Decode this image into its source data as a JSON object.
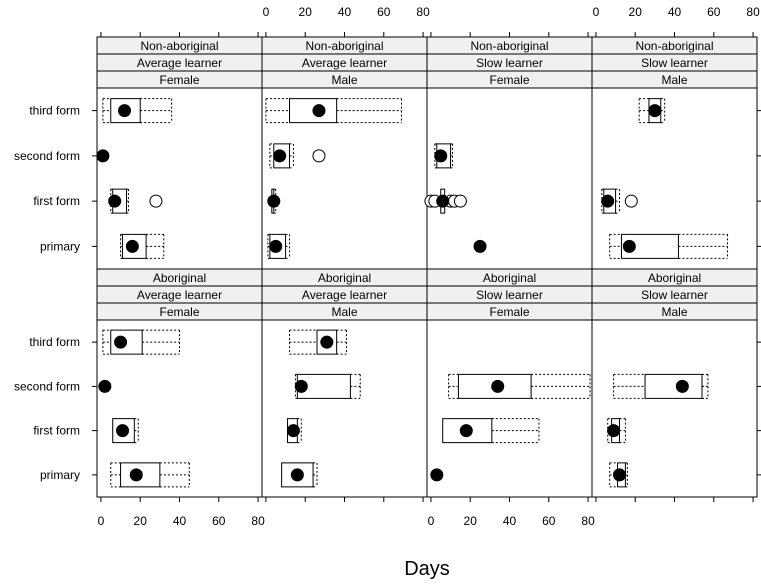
{
  "chart_data": {
    "type": "boxplot",
    "xlabel": "Days",
    "xlim": [
      -2,
      82
    ],
    "x_ticks": [
      0,
      20,
      40,
      60,
      80
    ],
    "categories": [
      "primary",
      "first form",
      "second form",
      "third form"
    ],
    "colors": {
      "box": "#000000",
      "dot": "#000000",
      "strip": "#f0f0f0",
      "outlier_fill": "#ffffff"
    },
    "panels": [
      {
        "strip": [
          "Non-aboriginal",
          "Average learner",
          "Female"
        ],
        "boxes": [
          {
            "category": "third form",
            "lo": 1,
            "q1": 5,
            "median": 12,
            "q3": 20,
            "hi": 36,
            "outliers": []
          },
          {
            "category": "second form",
            "lo": 1,
            "q1": 1,
            "median": 1,
            "q3": 1,
            "hi": 1,
            "outliers": []
          },
          {
            "category": "first form",
            "lo": 5,
            "q1": 6,
            "median": 7,
            "q3": 13,
            "hi": 14,
            "outliers": [
              28
            ]
          },
          {
            "category": "primary",
            "lo": 10,
            "q1": 11,
            "median": 16,
            "q3": 23,
            "hi": 32,
            "outliers": []
          }
        ]
      },
      {
        "strip": [
          "Non-aboriginal",
          "Average learner",
          "Male"
        ],
        "boxes": [
          {
            "category": "third form",
            "lo": 0,
            "q1": 12,
            "median": 27,
            "q3": 36,
            "hi": 69,
            "outliers": []
          },
          {
            "category": "second form",
            "lo": 2,
            "q1": 4,
            "median": 7,
            "q3": 12,
            "hi": 14,
            "outliers": [
              27
            ]
          },
          {
            "category": "first form",
            "lo": 3,
            "q1": 3,
            "median": 4,
            "q3": 4,
            "hi": 5,
            "outliers": []
          },
          {
            "category": "primary",
            "lo": 1,
            "q1": 2,
            "median": 5,
            "q3": 10,
            "hi": 12,
            "outliers": []
          }
        ]
      },
      {
        "strip": [
          "Non-aboriginal",
          "Slow learner",
          "Female"
        ],
        "boxes": [
          {
            "category": "third form",
            "lo": null,
            "q1": null,
            "median": null,
            "q3": null,
            "hi": null,
            "outliers": []
          },
          {
            "category": "second form",
            "lo": 2,
            "q1": 3,
            "median": 5,
            "q3": 10,
            "hi": 11,
            "outliers": []
          },
          {
            "category": "first form",
            "lo": 5,
            "q1": 5,
            "median": 6,
            "q3": 7,
            "hi": 7,
            "outliers": [
              0,
              2,
              10,
              12,
              15
            ]
          },
          {
            "category": "primary",
            "lo": 25,
            "q1": 25,
            "median": 25,
            "q3": 25,
            "hi": 25,
            "outliers": []
          }
        ]
      },
      {
        "strip": [
          "Non-aboriginal",
          "Slow learner",
          "Male"
        ],
        "boxes": [
          {
            "category": "third form",
            "lo": 22,
            "q1": 27,
            "median": 30,
            "q3": 33,
            "hi": 35,
            "outliers": []
          },
          {
            "category": "second form",
            "lo": null,
            "q1": null,
            "median": null,
            "q3": null,
            "hi": null,
            "outliers": []
          },
          {
            "category": "first form",
            "lo": 3,
            "q1": 4,
            "median": 6,
            "q3": 10,
            "hi": 12,
            "outliers": [
              18
            ]
          },
          {
            "category": "primary",
            "lo": 7,
            "q1": 13,
            "median": 17,
            "q3": 42,
            "hi": 67,
            "outliers": []
          }
        ]
      },
      {
        "strip": [
          "Aboriginal",
          "Average learner",
          "Female"
        ],
        "boxes": [
          {
            "category": "third form",
            "lo": 1,
            "q1": 5,
            "median": 10,
            "q3": 21,
            "hi": 40,
            "outliers": []
          },
          {
            "category": "second form",
            "lo": 2,
            "q1": 2,
            "median": 2,
            "q3": 2,
            "hi": 2,
            "outliers": []
          },
          {
            "category": "first form",
            "lo": 6,
            "q1": 6,
            "median": 11,
            "q3": 17,
            "hi": 19,
            "outliers": []
          },
          {
            "category": "primary",
            "lo": 5,
            "q1": 10,
            "median": 18,
            "q3": 30,
            "hi": 45,
            "outliers": []
          }
        ]
      },
      {
        "strip": [
          "Aboriginal",
          "Average learner",
          "Male"
        ],
        "boxes": [
          {
            "category": "third form",
            "lo": 12,
            "q1": 26,
            "median": 31,
            "q3": 36,
            "hi": 41,
            "outliers": []
          },
          {
            "category": "second form",
            "lo": 15,
            "q1": 16,
            "median": 18,
            "q3": 43,
            "hi": 48,
            "outliers": []
          },
          {
            "category": "first form",
            "lo": 11,
            "q1": 11,
            "median": 14,
            "q3": 16,
            "hi": 18,
            "outliers": []
          },
          {
            "category": "primary",
            "lo": 8,
            "q1": 8,
            "median": 16,
            "q3": 24,
            "hi": 26,
            "outliers": []
          }
        ]
      },
      {
        "strip": [
          "Aboriginal",
          "Slow learner",
          "Female"
        ],
        "boxes": [
          {
            "category": "third form",
            "lo": null,
            "q1": null,
            "median": null,
            "q3": null,
            "hi": null,
            "outliers": []
          },
          {
            "category": "second form",
            "lo": 9,
            "q1": 14,
            "median": 34,
            "q3": 51,
            "hi": 81,
            "outliers": []
          },
          {
            "category": "first form",
            "lo": 6,
            "q1": 6,
            "median": 18,
            "q3": 31,
            "hi": 55,
            "outliers": []
          },
          {
            "category": "primary",
            "lo": 3,
            "q1": 3,
            "median": 3,
            "q3": 3,
            "hi": 3,
            "outliers": []
          }
        ]
      },
      {
        "strip": [
          "Aboriginal",
          "Slow learner",
          "Male"
        ],
        "boxes": [
          {
            "category": "third form",
            "lo": null,
            "q1": null,
            "median": null,
            "q3": null,
            "hi": null,
            "outliers": []
          },
          {
            "category": "second form",
            "lo": 9,
            "q1": 25,
            "median": 44,
            "q3": 54,
            "hi": 57,
            "outliers": []
          },
          {
            "category": "first form",
            "lo": 6,
            "q1": 8,
            "median": 9,
            "q3": 12,
            "hi": 15,
            "outliers": []
          },
          {
            "category": "primary",
            "lo": 7,
            "q1": 11,
            "median": 12,
            "q3": 15,
            "hi": 16,
            "outliers": []
          }
        ]
      }
    ]
  }
}
